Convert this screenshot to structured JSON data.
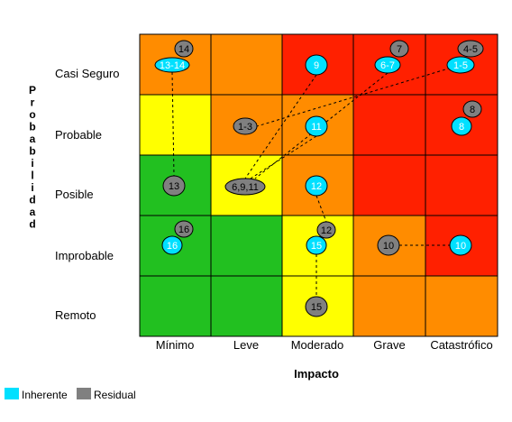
{
  "chart_data": {
    "type": "heatmap",
    "xlabel": "Impacto",
    "ylabel": "Probabilidad",
    "x_categories": [
      "Mínimo",
      "Leve",
      "Moderado",
      "Grave",
      "Catastrófico"
    ],
    "y_categories": [
      "Casi Seguro",
      "Probable",
      "Posible",
      "Improbable",
      "Remoto"
    ],
    "cell_colors": [
      [
        "#FF8C00",
        "#FF8C00",
        "#FF2000",
        "#FF2000",
        "#FF2000"
      ],
      [
        "#FFFF00",
        "#FF8C00",
        "#FF8C00",
        "#FF2000",
        "#FF2000"
      ],
      [
        "#22C020",
        "#FFFF00",
        "#FF8C00",
        "#FF2000",
        "#FF2000"
      ],
      [
        "#22C020",
        "#22C020",
        "#FFFF00",
        "#FF8C00",
        "#FF2000"
      ],
      [
        "#22C020",
        "#22C020",
        "#FFFF00",
        "#FF8C00",
        "#FF8C00"
      ]
    ],
    "legend": [
      {
        "label": "Inherente",
        "color": "#00E0FF"
      },
      {
        "label": "Residual",
        "color": "#808080"
      }
    ],
    "points": [
      {
        "label": "13-14",
        "type": "inherente",
        "x": "Mínimo",
        "y": "Casi Seguro"
      },
      {
        "label": "14",
        "type": "residual",
        "x": "Mínimo",
        "y": "Casi Seguro"
      },
      {
        "label": "13",
        "type": "residual",
        "x": "Mínimo",
        "y": "Posible"
      },
      {
        "label": "16",
        "type": "inherente",
        "x": "Mínimo",
        "y": "Improbable"
      },
      {
        "label": "16",
        "type": "residual",
        "x": "Mínimo",
        "y": "Improbable"
      },
      {
        "label": "1-3",
        "type": "residual",
        "x": "Leve",
        "y": "Probable"
      },
      {
        "label": "6,9,11",
        "type": "residual",
        "x": "Leve",
        "y": "Posible"
      },
      {
        "label": "9",
        "type": "inherente",
        "x": "Moderado",
        "y": "Casi Seguro"
      },
      {
        "label": "11",
        "type": "inherente",
        "x": "Moderado",
        "y": "Probable"
      },
      {
        "label": "12",
        "type": "inherente",
        "x": "Moderado",
        "y": "Posible"
      },
      {
        "label": "15",
        "type": "inherente",
        "x": "Moderado",
        "y": "Improbable"
      },
      {
        "label": "12",
        "type": "residual",
        "x": "Moderado",
        "y": "Improbable"
      },
      {
        "label": "15",
        "type": "residual",
        "x": "Moderado",
        "y": "Remoto"
      },
      {
        "label": "6-7",
        "type": "inherente",
        "x": "Grave",
        "y": "Casi Seguro"
      },
      {
        "label": "7",
        "type": "residual",
        "x": "Grave",
        "y": "Casi Seguro"
      },
      {
        "label": "10",
        "type": "residual",
        "x": "Grave",
        "y": "Improbable"
      },
      {
        "label": "1-5",
        "type": "inherente",
        "x": "Catastrófico",
        "y": "Casi Seguro"
      },
      {
        "label": "4-5",
        "type": "residual",
        "x": "Catastrófico",
        "y": "Casi Seguro"
      },
      {
        "label": "8",
        "type": "inherente",
        "x": "Catastrófico",
        "y": "Probable"
      },
      {
        "label": "8",
        "type": "residual",
        "x": "Catastrófico",
        "y": "Probable"
      },
      {
        "label": "10",
        "type": "inherente",
        "x": "Catastrófico",
        "y": "Improbable"
      }
    ],
    "connections": [
      {
        "from": "13-14",
        "to": "13"
      },
      {
        "from": "9",
        "to": "6,9,11"
      },
      {
        "from": "11",
        "to": "6,9,11"
      },
      {
        "from": "6-7",
        "to": "6,9,11"
      },
      {
        "from": "1-5",
        "to": "1-3"
      },
      {
        "from": "12 (inherente)",
        "to": "12 (residual)"
      },
      {
        "from": "15 (inherente)",
        "to": "15 (residual)"
      },
      {
        "from": "10 (residual)",
        "to": "10 (inherente)"
      }
    ]
  }
}
